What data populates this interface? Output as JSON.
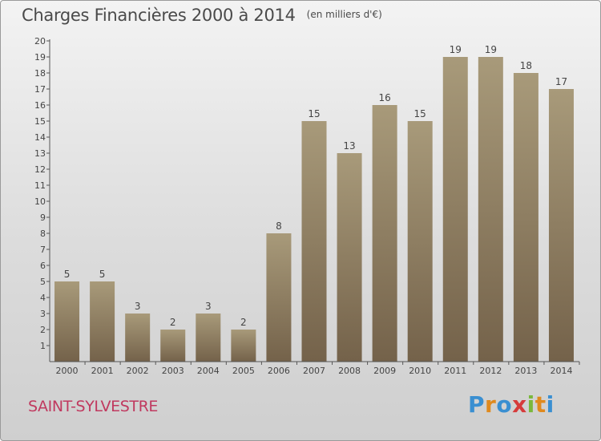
{
  "header": {
    "title": "Charges Financières 2000 à 2014",
    "unit": "(en milliers d'€)"
  },
  "footer": {
    "commune": "SAINT-SYLVESTRE",
    "logo_text": "Proxiti",
    "logo_colors": [
      "#3a8fd1",
      "#e08a1e",
      "#3a8fd1",
      "#d63b3b",
      "#7ab83c",
      "#e08a1e",
      "#3a8fd1"
    ]
  },
  "colors": {
    "bar_top": "#a89a7a",
    "bar_bottom": "#74624a",
    "axis": "#555555",
    "grid": "#9a9a9a",
    "text": "#444444"
  },
  "chart_data": {
    "type": "bar",
    "title": "Charges Financières 2000 à 2014",
    "subtitle": "(en milliers d'€)",
    "categories": [
      "2000",
      "2001",
      "2002",
      "2003",
      "2004",
      "2005",
      "2006",
      "2007",
      "2008",
      "2009",
      "2010",
      "2011",
      "2012",
      "2013",
      "2014"
    ],
    "values": [
      5,
      5,
      3,
      2,
      3,
      2,
      8,
      15,
      13,
      16,
      15,
      19,
      19,
      18,
      17
    ],
    "yticks": [
      1,
      2,
      3,
      4,
      5,
      6,
      7,
      8,
      9,
      10,
      11,
      12,
      13,
      14,
      15,
      16,
      17,
      18,
      19,
      20
    ],
    "ylim": [
      1,
      20
    ],
    "grid": false,
    "data_labels": true
  }
}
